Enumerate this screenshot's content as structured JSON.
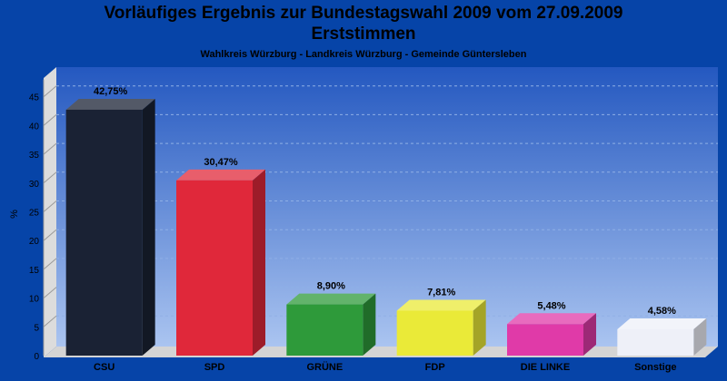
{
  "chart_data": {
    "type": "bar",
    "title": "Vorläufiges Ergebnis zur Bundestagswahl 2009 vom 27.09.2009",
    "title2": "Erststimmen",
    "subtitle": "Wahlkreis Würzburg - Landkreis Würzburg - Gemeinde Güntersleben",
    "ylabel": "%",
    "ylim": [
      0,
      48
    ],
    "yticks": [
      0,
      5,
      10,
      15,
      20,
      25,
      30,
      35,
      40,
      45
    ],
    "grid": true,
    "categories": [
      "CSU",
      "SPD",
      "GRÜNE",
      "FDP",
      "DIE LINKE",
      "Sonstige"
    ],
    "values": [
      42.75,
      30.47,
      8.9,
      7.81,
      5.48,
      4.58
    ],
    "value_labels": [
      "42,75%",
      "30,47%",
      "8,90%",
      "7,81%",
      "5,48%",
      "4,58%"
    ],
    "colors": [
      "#1a2234",
      "#e0283a",
      "#2e9a3a",
      "#eaea38",
      "#e03aa8",
      "#eef0f8"
    ]
  }
}
